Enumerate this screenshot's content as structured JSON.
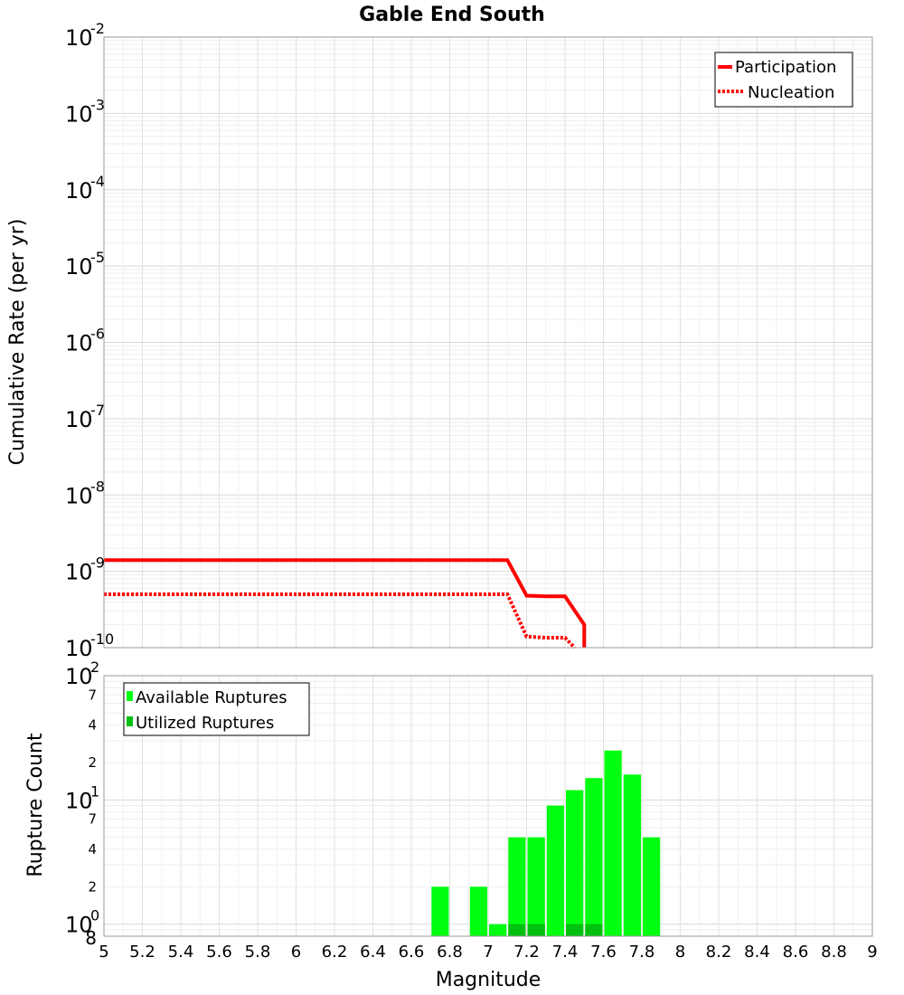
{
  "chart_data": [
    {
      "type": "line",
      "title": "Gable End South",
      "ylabel": "Cumulative Rate (per yr)",
      "xlabel": "",
      "xlim": [
        5,
        9
      ],
      "ylim": [
        1e-10,
        0.01
      ],
      "yscale": "log",
      "grid": true,
      "legend_position": "top-right",
      "y_tick_labels": [
        {
          "base": "10",
          "exp": "-2"
        },
        {
          "base": "10",
          "exp": "-3"
        },
        {
          "base": "10",
          "exp": "-4"
        },
        {
          "base": "10",
          "exp": "-5"
        },
        {
          "base": "10",
          "exp": "-6"
        },
        {
          "base": "10",
          "exp": "-7"
        },
        {
          "base": "10",
          "exp": "-8"
        },
        {
          "base": "10",
          "exp": "-9"
        },
        {
          "base": "10",
          "exp": "-10"
        }
      ],
      "series": [
        {
          "name": "Participation",
          "color": "#ff0000",
          "style": "solid",
          "x": [
            5.0,
            7.1,
            7.2,
            7.3,
            7.4,
            7.5,
            7.5
          ],
          "y": [
            1.4e-09,
            1.4e-09,
            4.8e-10,
            4.7e-10,
            4.7e-10,
            2e-10,
            1e-10
          ]
        },
        {
          "name": "Nucleation",
          "color": "#ff0000",
          "style": "dotted",
          "x": [
            5.0,
            7.1,
            7.2,
            7.3,
            7.4,
            7.45
          ],
          "y": [
            5e-10,
            5e-10,
            1.4e-10,
            1.35e-10,
            1.35e-10,
            1e-10
          ]
        }
      ]
    },
    {
      "type": "bar",
      "title": "",
      "ylabel": "Rupture Count",
      "xlabel": "Magnitude",
      "xlim": [
        5,
        9
      ],
      "ylim": [
        0.8,
        100
      ],
      "yscale": "log",
      "grid": true,
      "legend_position": "top-left",
      "x_tick_labels": [
        "5",
        "5.2",
        "5.4",
        "5.6",
        "5.8",
        "6",
        "6.2",
        "6.4",
        "6.6",
        "6.8",
        "7",
        "7.2",
        "7.4",
        "7.6",
        "7.8",
        "8",
        "8.2",
        "8.4",
        "8.6",
        "8.8",
        "9"
      ],
      "y_major_labels": [
        {
          "base": "10",
          "exp": "2"
        },
        {
          "base": "10",
          "exp": "1"
        },
        {
          "base": "10",
          "exp": "0"
        }
      ],
      "y_minor_labels": [
        {
          "value": 70,
          "label": "7"
        },
        {
          "value": 40,
          "label": "4"
        },
        {
          "value": 20,
          "label": "2"
        },
        {
          "value": 7,
          "label": "7"
        },
        {
          "value": 4,
          "label": "4"
        },
        {
          "value": 2,
          "label": "2"
        },
        {
          "value": 0.8,
          "label": "8"
        }
      ],
      "bar_width": 0.1,
      "series": [
        {
          "name": "Available Ruptures",
          "color": "#00ff10",
          "x": [
            6.75,
            6.95,
            7.05,
            7.15,
            7.25,
            7.35,
            7.45,
            7.55,
            7.65,
            7.75,
            7.85
          ],
          "values": [
            2,
            2,
            1,
            5,
            5,
            9,
            12,
            15,
            25,
            16,
            5
          ]
        },
        {
          "name": "Utilized Ruptures",
          "color": "#00c010",
          "x": [
            7.15,
            7.25,
            7.45,
            7.55
          ],
          "values": [
            1,
            1,
            1,
            1
          ]
        }
      ]
    }
  ]
}
